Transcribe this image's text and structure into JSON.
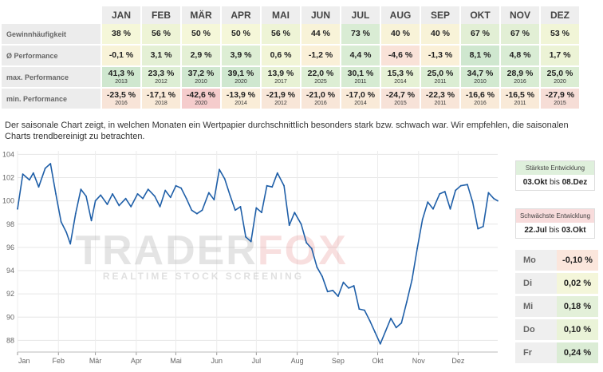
{
  "table": {
    "months": [
      "JAN",
      "FEB",
      "MÄR",
      "APR",
      "MAI",
      "JUN",
      "JUL",
      "AUG",
      "SEP",
      "OKT",
      "NOV",
      "DEZ"
    ],
    "rows": [
      {
        "label": "Gewinnhäufigkeit",
        "cells": [
          {
            "value": "38 %",
            "color": "#f5f7d9"
          },
          {
            "value": "56 %",
            "color": "#eef4d6"
          },
          {
            "value": "50 %",
            "color": "#f5f7d9"
          },
          {
            "value": "50 %",
            "color": "#f5f7d9"
          },
          {
            "value": "56 %",
            "color": "#eef4d6"
          },
          {
            "value": "44 %",
            "color": "#f8f3d8"
          },
          {
            "value": "73 %",
            "color": "#d9ecd4"
          },
          {
            "value": "40 %",
            "color": "#f8f3d8"
          },
          {
            "value": "40 %",
            "color": "#f8f3d8"
          },
          {
            "value": "67 %",
            "color": "#e2efd5"
          },
          {
            "value": "67 %",
            "color": "#e2efd5"
          },
          {
            "value": "53 %",
            "color": "#f1f5d7"
          }
        ]
      },
      {
        "label": "Ø Performance",
        "cells": [
          {
            "value": "-0,1 %",
            "color": "#f8f3d8"
          },
          {
            "value": "3,1 %",
            "color": "#e4f0d5"
          },
          {
            "value": "2,9 %",
            "color": "#e4f0d5"
          },
          {
            "value": "3,9 %",
            "color": "#ddeed4"
          },
          {
            "value": "0,6 %",
            "color": "#f2f5d7"
          },
          {
            "value": "-1,2 %",
            "color": "#faf0d8"
          },
          {
            "value": "4,4 %",
            "color": "#d9ecd4"
          },
          {
            "value": "-4,6 %",
            "color": "#f9e2d8"
          },
          {
            "value": "-1,3 %",
            "color": "#faf0d8"
          },
          {
            "value": "8,1 %",
            "color": "#cfe7cf"
          },
          {
            "value": "4,8 %",
            "color": "#d9ecd4"
          },
          {
            "value": "1,7 %",
            "color": "#ecf3d6"
          }
        ]
      },
      {
        "label": "max. Performance",
        "cells": [
          {
            "value": "41,3 %",
            "year": "2013",
            "color": "#cfe7cf"
          },
          {
            "value": "23,3 %",
            "year": "2012",
            "color": "#ddeed4"
          },
          {
            "value": "37,2 %",
            "year": "2010",
            "color": "#cfe7cf"
          },
          {
            "value": "39,1 %",
            "year": "2020",
            "color": "#cfe7cf"
          },
          {
            "value": "13,9 %",
            "year": "2017",
            "color": "#e8f2d5"
          },
          {
            "value": "22,0 %",
            "year": "2025",
            "color": "#ddeed4"
          },
          {
            "value": "30,1 %",
            "year": "2011",
            "color": "#d6ebd2"
          },
          {
            "value": "15,3 %",
            "year": "2014",
            "color": "#e6f1d5"
          },
          {
            "value": "25,0 %",
            "year": "2011",
            "color": "#dbedd3"
          },
          {
            "value": "34,7 %",
            "year": "2010",
            "color": "#d2e9d0"
          },
          {
            "value": "28,9 %",
            "year": "2016",
            "color": "#d8ecd3"
          },
          {
            "value": "25,0 %",
            "year": "2020",
            "color": "#dbedd3"
          }
        ]
      },
      {
        "label": "min. Performance",
        "cells": [
          {
            "value": "-23,5 %",
            "year": "2016",
            "color": "#f8e4d8"
          },
          {
            "value": "-17,1 %",
            "year": "2018",
            "color": "#f9ead8"
          },
          {
            "value": "-42,6 %",
            "year": "2020",
            "color": "#f5cccc"
          },
          {
            "value": "-13,9 %",
            "year": "2014",
            "color": "#faedd8"
          },
          {
            "value": "-21,9 %",
            "year": "2012",
            "color": "#f8e6d8"
          },
          {
            "value": "-21,0 %",
            "year": "2016",
            "color": "#f8e6d8"
          },
          {
            "value": "-17,0 %",
            "year": "2014",
            "color": "#f9ead8"
          },
          {
            "value": "-24,7 %",
            "year": "2015",
            "color": "#f7e2d8"
          },
          {
            "value": "-22,3 %",
            "year": "2011",
            "color": "#f8e5d8"
          },
          {
            "value": "-16,6 %",
            "year": "2016",
            "color": "#f9ead8"
          },
          {
            "value": "-16,5 %",
            "year": "2011",
            "color": "#f9ead8"
          },
          {
            "value": "-27,9 %",
            "year": "2015",
            "color": "#f6ddd6"
          }
        ]
      }
    ]
  },
  "description": "Der saisonale Chart zeigt, in welchen Monaten ein Wertpapier durchschnittlich besonders stark bzw. schwach war. Wir empfehlen, die saisonalen Charts trendbereinigt zu betrachten.",
  "watermark": {
    "brand_left": "TRADER",
    "brand_right": "FOX",
    "tagline": "REALTIME STOCK SCREENING"
  },
  "strongest": {
    "title": "Stärkste Entwicklung",
    "from": "03.Okt",
    "connector": "bis",
    "to": "08.Dez"
  },
  "weakest": {
    "title": "Schwächste Entwicklung",
    "from": "22.Jul",
    "connector": "bis",
    "to": "03.Okt"
  },
  "weekdays": [
    {
      "label": "Mo",
      "value": "-0,10 %",
      "color": "#fbe6dc"
    },
    {
      "label": "Di",
      "value": "0,02 %",
      "color": "#f4f6da"
    },
    {
      "label": "Mi",
      "value": "0,18 %",
      "color": "#e3f0d9"
    },
    {
      "label": "Do",
      "value": "0,10 %",
      "color": "#eaf3d8"
    },
    {
      "label": "Fr",
      "value": "0,24 %",
      "color": "#dbecd5"
    }
  ],
  "chart_data": {
    "type": "line",
    "x_ticks": [
      "Jan",
      "Feb",
      "Mär",
      "Apr",
      "Mai",
      "Jun",
      "Jul",
      "Aug",
      "Sep",
      "Okt",
      "Nov",
      "Dez"
    ],
    "y_ticks": [
      88,
      90,
      92,
      94,
      96,
      98,
      100,
      102,
      104
    ],
    "ylim": [
      87,
      104.3
    ],
    "grid": true,
    "line_color": "#1f5fa8",
    "series": [
      {
        "x": [
          "01-01",
          "01-05",
          "01-10",
          "01-13",
          "01-17",
          "01-22",
          "01-26",
          "01-30",
          "02-03",
          "02-07",
          "02-10",
          "02-14",
          "02-18",
          "02-22",
          "02-26",
          "03-01",
          "03-05",
          "03-10",
          "03-14",
          "03-19",
          "03-24",
          "03-28",
          "04-02",
          "04-06",
          "04-10",
          "04-15",
          "04-19",
          "04-23",
          "04-27",
          "05-01",
          "05-05",
          "05-09",
          "05-13",
          "05-17",
          "05-21",
          "05-26",
          "05-30",
          "06-03",
          "06-07",
          "06-11",
          "06-15",
          "06-19",
          "06-23",
          "06-27",
          "07-01",
          "07-05",
          "07-09",
          "07-13",
          "07-17",
          "07-22",
          "07-26",
          "07-30",
          "08-04",
          "08-08",
          "08-12",
          "08-16",
          "08-20",
          "08-24",
          "08-28",
          "09-01",
          "09-05",
          "09-09",
          "09-13",
          "09-17",
          "09-21",
          "09-25",
          "09-29",
          "10-03",
          "10-07",
          "10-11",
          "10-15",
          "10-19",
          "10-23",
          "10-27",
          "10-31",
          "11-04",
          "11-08",
          "11-12",
          "11-17",
          "11-21",
          "11-25",
          "11-29",
          "12-03",
          "12-08",
          "12-12",
          "12-16",
          "12-20",
          "12-24",
          "12-28",
          "12-31"
        ],
        "y": [
          99.3,
          102.3,
          101.8,
          102.4,
          101.2,
          102.8,
          103.2,
          100.6,
          98.2,
          97.3,
          96.3,
          98.9,
          101.0,
          100.4,
          98.3,
          100.0,
          100.5,
          99.7,
          100.6,
          99.6,
          100.2,
          99.5,
          100.6,
          100.2,
          101.0,
          100.4,
          99.5,
          100.9,
          100.3,
          101.3,
          101.1,
          100.2,
          99.2,
          98.9,
          99.2,
          100.7,
          100.1,
          102.7,
          101.9,
          100.5,
          99.2,
          99.5,
          96.9,
          96.5,
          99.4,
          99.0,
          101.3,
          101.2,
          102.4,
          101.3,
          97.9,
          99.0,
          98.0,
          96.4,
          95.9,
          94.3,
          93.5,
          92.2,
          92.3,
          91.8,
          93.0,
          92.5,
          92.7,
          90.7,
          90.6,
          89.7,
          88.7,
          87.7,
          88.8,
          89.9,
          89.1,
          89.5,
          91.3,
          93.2,
          95.9,
          98.4,
          99.9,
          99.3,
          100.6,
          100.8,
          99.3,
          100.9,
          101.3,
          101.4,
          99.9,
          97.6,
          97.8,
          100.7,
          100.2,
          100.0
        ]
      }
    ]
  }
}
